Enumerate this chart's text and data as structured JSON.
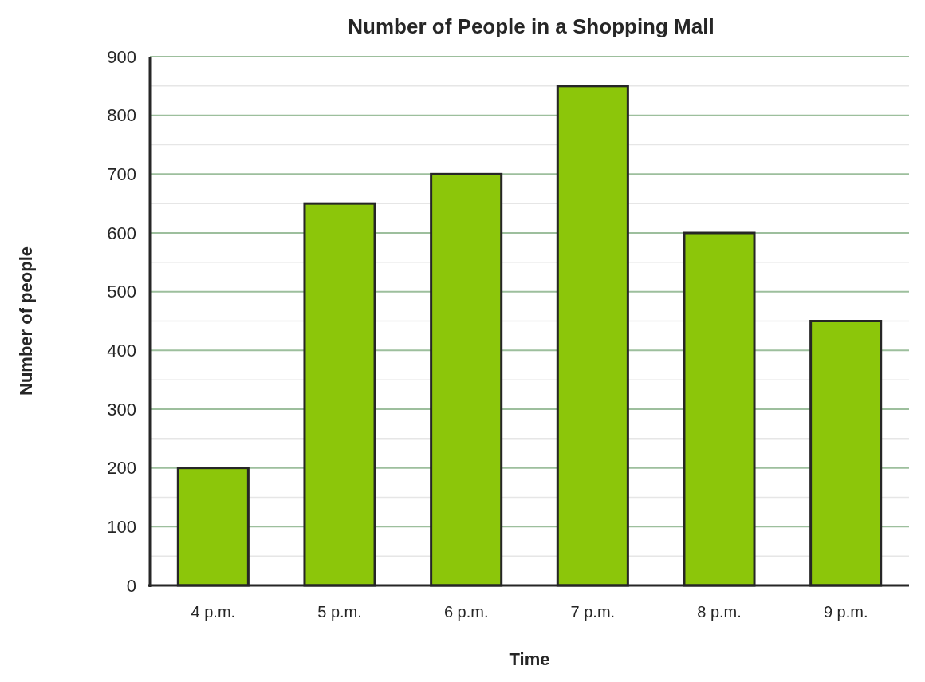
{
  "chart_data": {
    "type": "bar",
    "title": "Number of People in a Shopping Mall",
    "xlabel": "Time",
    "ylabel": "Number of people",
    "categories": [
      "4 p.m.",
      "5 p.m.",
      "6 p.m.",
      "7 p.m.",
      "8 p.m.",
      "9 p.m."
    ],
    "values": [
      200,
      650,
      700,
      850,
      600,
      450
    ],
    "color": "#8cc60a",
    "ylim": [
      0,
      900
    ],
    "yticks": [
      0,
      100,
      200,
      300,
      400,
      500,
      600,
      700,
      800,
      900
    ],
    "grid": "y"
  }
}
